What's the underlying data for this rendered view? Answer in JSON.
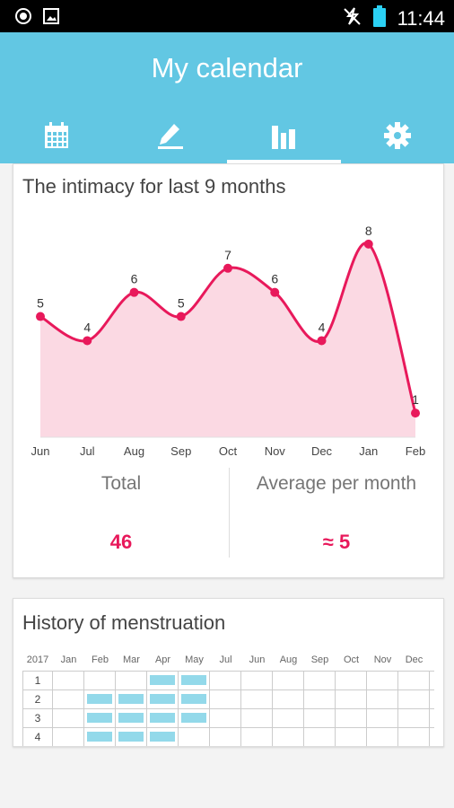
{
  "status_bar": {
    "time": "11:44"
  },
  "app": {
    "title": "My calendar"
  },
  "tabs": [
    {
      "icon": "calendar-icon",
      "active": false
    },
    {
      "icon": "pencil-icon",
      "active": false
    },
    {
      "icon": "bar-chart-icon",
      "active": true
    },
    {
      "icon": "gear-icon",
      "active": false
    }
  ],
  "intimacy": {
    "title": "The intimacy for last 9 months",
    "total_label": "Total",
    "total_value": "46",
    "average_label": "Average per month",
    "average_value": "≈ 5"
  },
  "chart_data": {
    "type": "area",
    "categories": [
      "Jun",
      "Jul",
      "Aug",
      "Sep",
      "Oct",
      "Nov",
      "Dec",
      "Jan",
      "Feb"
    ],
    "values": [
      5,
      4,
      6,
      5,
      7,
      6,
      4,
      8,
      1
    ],
    "ylim": [
      0,
      9
    ],
    "colors": {
      "line": "#e8195b",
      "fill": "#fbd9e3"
    }
  },
  "history": {
    "title": "History of menstruation",
    "year": "2017",
    "months": [
      "Jan",
      "Feb",
      "Mar",
      "Apr",
      "May",
      "Jul",
      "Jun",
      "Aug",
      "Sep",
      "Oct",
      "Nov",
      "Dec"
    ],
    "rows": [
      {
        "label": "1",
        "marked": [
          false,
          false,
          false,
          true,
          true,
          false,
          false,
          false,
          false,
          false,
          false,
          false
        ]
      },
      {
        "label": "2",
        "marked": [
          false,
          true,
          true,
          true,
          true,
          false,
          false,
          false,
          false,
          false,
          false,
          false
        ]
      },
      {
        "label": "3",
        "marked": [
          false,
          true,
          true,
          true,
          true,
          false,
          false,
          false,
          false,
          false,
          false,
          false
        ]
      },
      {
        "label": "4",
        "marked": [
          false,
          true,
          true,
          true,
          false,
          false,
          false,
          false,
          false,
          false,
          false,
          false
        ]
      }
    ],
    "bar_color": "#93d9ea"
  }
}
